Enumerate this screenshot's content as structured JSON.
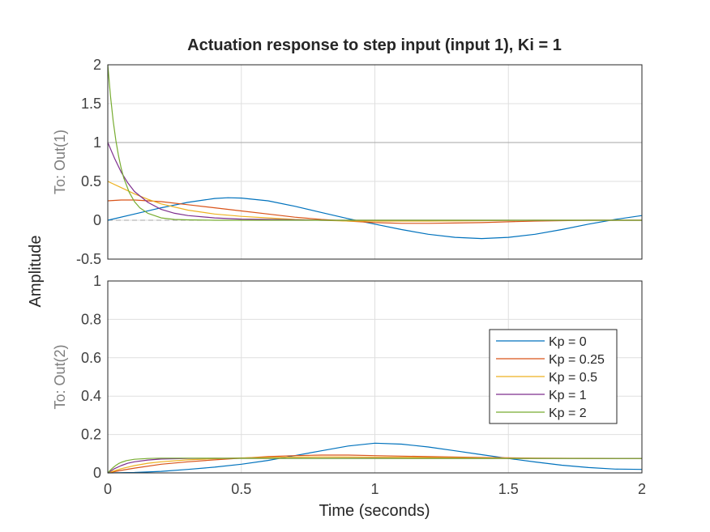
{
  "chart_data": {
    "type": "line",
    "title": "Actuation response to step input (input 1), Ki = 1",
    "xlabel": "Time (seconds)",
    "ylabel": "Amplitude",
    "xlim": [
      0,
      2
    ],
    "x_ticks": [
      "0",
      "0.5",
      "1",
      "1.5",
      "2"
    ],
    "grid": true,
    "legend_placement": "bottom-right of lower subplot",
    "subplots": [
      {
        "label": "To: Out(1)",
        "ylim": [
          -0.5,
          2
        ],
        "y_ticks": [
          "2",
          "1.5",
          "1",
          "0.5",
          "0",
          "-0.5"
        ],
        "reference_lines": [
          {
            "y": 1,
            "style": "solid",
            "color": "#a6a6a6"
          },
          {
            "y": 0,
            "style": "dashed",
            "color": "#a6a6a6"
          }
        ],
        "series": [
          {
            "name": "Kp = 0",
            "color": "#0072BD",
            "x": [
              0,
              0.1,
              0.2,
              0.3,
              0.4,
              0.45,
              0.5,
              0.6,
              0.7,
              0.8,
              0.9,
              1.0,
              1.1,
              1.2,
              1.3,
              1.4,
              1.5,
              1.6,
              1.7,
              1.8,
              1.9,
              2.0
            ],
            "y": [
              0,
              0.08,
              0.16,
              0.23,
              0.28,
              0.29,
              0.285,
              0.25,
              0.18,
              0.1,
              0.02,
              -0.05,
              -0.12,
              -0.18,
              -0.22,
              -0.235,
              -0.22,
              -0.18,
              -0.12,
              -0.05,
              0.01,
              0.06
            ]
          },
          {
            "name": "Kp = 0.25",
            "color": "#D95319",
            "x": [
              0,
              0.05,
              0.1,
              0.2,
              0.3,
              0.4,
              0.5,
              0.6,
              0.7,
              0.8,
              0.9,
              1.0,
              1.1,
              1.2,
              1.3,
              1.4,
              1.5,
              1.6,
              1.8,
              2.0
            ],
            "y": [
              0.25,
              0.26,
              0.26,
              0.24,
              0.2,
              0.16,
              0.12,
              0.08,
              0.04,
              0.01,
              -0.01,
              -0.03,
              -0.04,
              -0.04,
              -0.035,
              -0.03,
              -0.02,
              -0.01,
              0.0,
              0.0
            ]
          },
          {
            "name": "Kp = 0.5",
            "color": "#EDB120",
            "x": [
              0,
              0.05,
              0.1,
              0.15,
              0.2,
              0.3,
              0.4,
              0.5,
              0.6,
              0.7,
              0.8,
              0.9,
              1.0,
              1.2,
              1.4,
              1.6,
              1.8,
              2.0
            ],
            "y": [
              0.5,
              0.42,
              0.34,
              0.27,
              0.21,
              0.13,
              0.08,
              0.05,
              0.03,
              0.01,
              0.0,
              -0.01,
              -0.01,
              -0.01,
              -0.005,
              0.0,
              0.0,
              0.0
            ]
          },
          {
            "name": "Kp = 1",
            "color": "#7E2F8E",
            "x": [
              0,
              0.025,
              0.05,
              0.075,
              0.1,
              0.15,
              0.2,
              0.25,
              0.3,
              0.4,
              0.5,
              0.6,
              0.8,
              1.0,
              1.5,
              2.0
            ],
            "y": [
              1.0,
              0.8,
              0.62,
              0.48,
              0.37,
              0.23,
              0.14,
              0.09,
              0.06,
              0.03,
              0.015,
              0.01,
              0.0,
              0.0,
              0.0,
              0.0
            ]
          },
          {
            "name": "Kp = 2",
            "color": "#77AC30",
            "x": [
              0,
              0.01,
              0.02,
              0.03,
              0.04,
              0.05,
              0.06,
              0.08,
              0.1,
              0.12,
              0.15,
              0.2,
              0.25,
              0.3,
              0.4,
              0.6,
              1.0,
              1.5,
              2.0
            ],
            "y": [
              2.0,
              1.6,
              1.28,
              1.03,
              0.83,
              0.67,
              0.54,
              0.36,
              0.24,
              0.16,
              0.09,
              0.03,
              0.01,
              0.005,
              0.0,
              0.0,
              0.0,
              0.0,
              0.0
            ]
          }
        ]
      },
      {
        "label": "To: Out(2)",
        "ylim": [
          0,
          1
        ],
        "y_ticks": [
          "1",
          "0.8",
          "0.6",
          "0.4",
          "0.2",
          "0"
        ],
        "reference_lines": [
          {
            "y": 0,
            "style": "dashed",
            "color": "#a6a6a6"
          }
        ],
        "series": [
          {
            "name": "Kp = 0",
            "color": "#0072BD",
            "x": [
              0,
              0.1,
              0.2,
              0.3,
              0.4,
              0.5,
              0.6,
              0.7,
              0.8,
              0.9,
              1.0,
              1.1,
              1.2,
              1.3,
              1.4,
              1.5,
              1.6,
              1.7,
              1.8,
              1.9,
              2.0
            ],
            "y": [
              0,
              0.002,
              0.008,
              0.018,
              0.03,
              0.045,
              0.065,
              0.09,
              0.115,
              0.14,
              0.155,
              0.15,
              0.135,
              0.115,
              0.095,
              0.075,
              0.057,
              0.04,
              0.028,
              0.02,
              0.018
            ]
          },
          {
            "name": "Kp = 0.25",
            "color": "#D95319",
            "x": [
              0,
              0.05,
              0.1,
              0.2,
              0.3,
              0.4,
              0.5,
              0.6,
              0.7,
              0.8,
              0.9,
              1.0,
              1.2,
              1.4,
              1.6,
              1.8,
              2.0
            ],
            "y": [
              0,
              0.013,
              0.025,
              0.045,
              0.058,
              0.068,
              0.077,
              0.085,
              0.09,
              0.093,
              0.093,
              0.09,
              0.085,
              0.08,
              0.077,
              0.075,
              0.075
            ]
          },
          {
            "name": "Kp = 0.5",
            "color": "#EDB120",
            "x": [
              0,
              0.05,
              0.1,
              0.15,
              0.2,
              0.3,
              0.4,
              0.5,
              0.6,
              0.8,
              1.0,
              1.2,
              1.4,
              1.6,
              1.8,
              2.0
            ],
            "y": [
              0,
              0.022,
              0.038,
              0.05,
              0.058,
              0.068,
              0.074,
              0.078,
              0.081,
              0.083,
              0.082,
              0.08,
              0.078,
              0.077,
              0.076,
              0.075
            ]
          },
          {
            "name": "Kp = 1",
            "color": "#7E2F8E",
            "x": [
              0,
              0.025,
              0.05,
              0.075,
              0.1,
              0.15,
              0.2,
              0.25,
              0.3,
              0.4,
              0.5,
              0.7,
              1.0,
              1.5,
              2.0
            ],
            "y": [
              0,
              0.022,
              0.038,
              0.05,
              0.058,
              0.067,
              0.072,
              0.074,
              0.075,
              0.076,
              0.076,
              0.076,
              0.076,
              0.075,
              0.075
            ]
          },
          {
            "name": "Kp = 2",
            "color": "#77AC30",
            "x": [
              0,
              0.01,
              0.02,
              0.03,
              0.04,
              0.05,
              0.07,
              0.1,
              0.15,
              0.2,
              0.3,
              0.5,
              1.0,
              1.5,
              2.0
            ],
            "y": [
              0,
              0.015,
              0.028,
              0.039,
              0.048,
              0.055,
              0.064,
              0.071,
              0.075,
              0.077,
              0.077,
              0.076,
              0.075,
              0.075,
              0.075
            ]
          }
        ]
      }
    ]
  }
}
